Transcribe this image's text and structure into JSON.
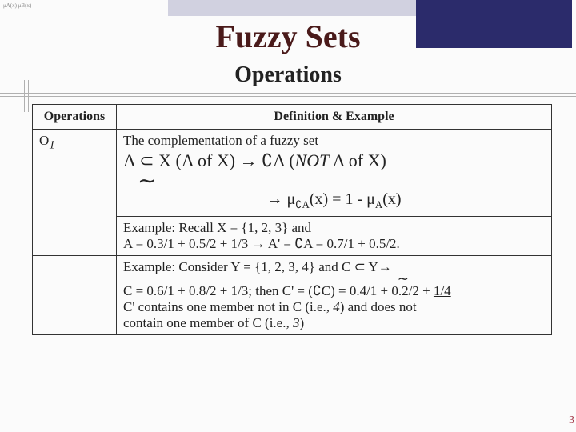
{
  "decor": {
    "stripe_color": "#d1d1e0",
    "block_color": "#2b2b6b",
    "rule_color": "#b0b0b0"
  },
  "notation_lines": "μA(x)\nμB(x)",
  "title": "Fuzzy Sets",
  "subtitle": "Operations",
  "table": {
    "header_ops": "Operations",
    "header_def": "Definition & Example",
    "op_symbol": "O",
    "op_sub": "1",
    "def_line": "The complementation of a fuzzy set",
    "math1_a": "A ⊂ X (A of X) ",
    "math1_arrow": "→",
    "math1_b": " ∁A (",
    "math1_not": "NOT",
    "math1_c": " A of X)",
    "tilde": "∼",
    "formula_arrow": "→",
    "formula_a": " μ",
    "formula_sub1": "∁A",
    "formula_mid": "(x) = 1 - μ",
    "formula_sub2": "A",
    "formula_end": "(x)",
    "ex1_l1": "Example: Recall X = {1, 2, 3} and",
    "ex1_l2a": "A = 0.3/1 + 0.5/2 + 1/3 ",
    "ex1_l2arrow": "→",
    "ex1_l2b": " A' = ∁A = 0.7/1 + 0.5/2.",
    "ex2_l1a": "Example: Consider Y = {1, 2, 3, 4} and C ⊂ Y",
    "ex2_l1arrow": "→",
    "ex2_tilde": "∼",
    "ex2_l2a": "C = 0.6/1 + 0.8/2 + 1/3; then C' = (∁C) = 0.4/1 + 0.2/2 + ",
    "ex2_l2u": "1/4",
    "ex2_l3a": "C' contains one member not in C (i.e., ",
    "ex2_l3i1": "4",
    "ex2_l3b": ") and does not",
    "ex2_l4a": "contain one member of C (i.e., ",
    "ex2_l4i1": "3",
    "ex2_l4b": ")"
  },
  "page_number": "3"
}
